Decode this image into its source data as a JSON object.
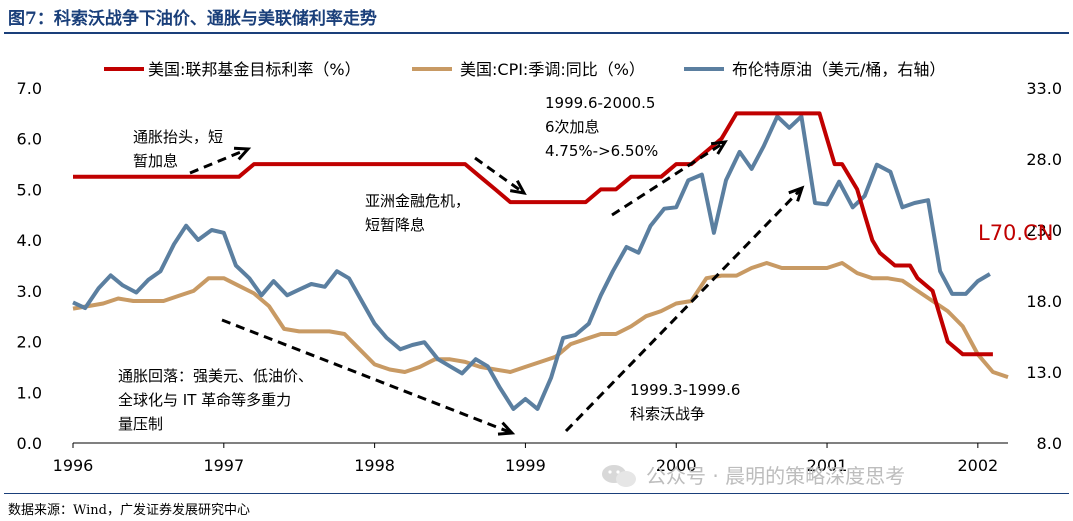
{
  "title": "图7：科索沃战争下油价、通胀与美联储利率走势",
  "source": "数据来源：Wind，广发证券发展研究中心",
  "watermark": "公众号 · 晨明的策略深度思考",
  "chart_data": {
    "type": "line",
    "legend_position": "top",
    "left_axis": {
      "min": 0,
      "max": 7,
      "ticks": [
        "0.0",
        "1.0",
        "2.0",
        "3.0",
        "4.0",
        "5.0",
        "6.0",
        "7.0"
      ]
    },
    "right_axis": {
      "min": 8,
      "max": 33,
      "ticks": [
        "8.0",
        "13.0",
        "18.0",
        "23.0",
        "28.0",
        "33.0"
      ]
    },
    "x_axis": {
      "min": 1996,
      "max": 2002.2,
      "ticks": [
        "1996",
        "1997",
        "1998",
        "1999",
        "2000",
        "2001",
        "2002"
      ]
    },
    "series": [
      {
        "name": "美国:联邦基金目标利率（%）",
        "color": "#c00000",
        "axis": "left",
        "points": [
          [
            1996.0,
            5.25
          ],
          [
            1996.1,
            5.25
          ],
          [
            1996.2,
            5.25
          ],
          [
            1996.3,
            5.25
          ],
          [
            1996.4,
            5.25
          ],
          [
            1996.5,
            5.25
          ],
          [
            1996.6,
            5.25
          ],
          [
            1996.7,
            5.25
          ],
          [
            1996.8,
            5.25
          ],
          [
            1996.9,
            5.25
          ],
          [
            1997.0,
            5.25
          ],
          [
            1997.1,
            5.25
          ],
          [
            1997.2,
            5.5
          ],
          [
            1997.4,
            5.5
          ],
          [
            1997.6,
            5.5
          ],
          [
            1997.8,
            5.5
          ],
          [
            1998.0,
            5.5
          ],
          [
            1998.2,
            5.5
          ],
          [
            1998.4,
            5.5
          ],
          [
            1998.6,
            5.5
          ],
          [
            1998.7,
            5.25
          ],
          [
            1998.8,
            5.0
          ],
          [
            1998.9,
            4.75
          ],
          [
            1999.1,
            4.75
          ],
          [
            1999.3,
            4.75
          ],
          [
            1999.4,
            4.75
          ],
          [
            1999.5,
            5.0
          ],
          [
            1999.6,
            5.0
          ],
          [
            1999.7,
            5.25
          ],
          [
            1999.9,
            5.25
          ],
          [
            2000.0,
            5.5
          ],
          [
            2000.1,
            5.5
          ],
          [
            2000.2,
            5.75
          ],
          [
            2000.3,
            6.0
          ],
          [
            2000.4,
            6.5
          ],
          [
            2000.6,
            6.5
          ],
          [
            2000.8,
            6.5
          ],
          [
            2000.95,
            6.5
          ],
          [
            2001.0,
            6.0
          ],
          [
            2001.05,
            5.5
          ],
          [
            2001.1,
            5.5
          ],
          [
            2001.2,
            5.0
          ],
          [
            2001.25,
            4.5
          ],
          [
            2001.3,
            4.0
          ],
          [
            2001.35,
            3.75
          ],
          [
            2001.45,
            3.5
          ],
          [
            2001.55,
            3.5
          ],
          [
            2001.6,
            3.25
          ],
          [
            2001.7,
            3.0
          ],
          [
            2001.75,
            2.5
          ],
          [
            2001.8,
            2.0
          ],
          [
            2001.9,
            1.75
          ],
          [
            2002.0,
            1.75
          ],
          [
            2002.1,
            1.75
          ]
        ]
      },
      {
        "name": "美国:CPI:季调:同比（%）",
        "color": "#c89a64",
        "axis": "left",
        "points": [
          [
            1996.0,
            2.65
          ],
          [
            1996.1,
            2.7
          ],
          [
            1996.2,
            2.75
          ],
          [
            1996.3,
            2.85
          ],
          [
            1996.4,
            2.8
          ],
          [
            1996.5,
            2.8
          ],
          [
            1996.6,
            2.8
          ],
          [
            1996.7,
            2.9
          ],
          [
            1996.8,
            3.0
          ],
          [
            1996.9,
            3.25
          ],
          [
            1997.0,
            3.25
          ],
          [
            1997.1,
            3.1
          ],
          [
            1997.2,
            2.95
          ],
          [
            1997.3,
            2.7
          ],
          [
            1997.4,
            2.25
          ],
          [
            1997.5,
            2.2
          ],
          [
            1997.6,
            2.2
          ],
          [
            1997.7,
            2.2
          ],
          [
            1997.8,
            2.15
          ],
          [
            1997.9,
            1.85
          ],
          [
            1998.0,
            1.55
          ],
          [
            1998.1,
            1.45
          ],
          [
            1998.2,
            1.4
          ],
          [
            1998.3,
            1.5
          ],
          [
            1998.4,
            1.65
          ],
          [
            1998.5,
            1.65
          ],
          [
            1998.6,
            1.6
          ],
          [
            1998.7,
            1.5
          ],
          [
            1998.8,
            1.45
          ],
          [
            1998.9,
            1.4
          ],
          [
            1999.0,
            1.5
          ],
          [
            1999.1,
            1.6
          ],
          [
            1999.2,
            1.7
          ],
          [
            1999.3,
            1.95
          ],
          [
            1999.4,
            2.05
          ],
          [
            1999.5,
            2.15
          ],
          [
            1999.6,
            2.15
          ],
          [
            1999.7,
            2.3
          ],
          [
            1999.8,
            2.5
          ],
          [
            1999.9,
            2.6
          ],
          [
            2000.0,
            2.75
          ],
          [
            2000.1,
            2.8
          ],
          [
            2000.2,
            3.25
          ],
          [
            2000.3,
            3.3
          ],
          [
            2000.4,
            3.3
          ],
          [
            2000.5,
            3.45
          ],
          [
            2000.6,
            3.55
          ],
          [
            2000.7,
            3.45
          ],
          [
            2000.8,
            3.45
          ],
          [
            2000.9,
            3.45
          ],
          [
            2001.0,
            3.45
          ],
          [
            2001.1,
            3.55
          ],
          [
            2001.2,
            3.35
          ],
          [
            2001.3,
            3.25
          ],
          [
            2001.4,
            3.25
          ],
          [
            2001.5,
            3.2
          ],
          [
            2001.6,
            3.0
          ],
          [
            2001.7,
            2.8
          ],
          [
            2001.8,
            2.6
          ],
          [
            2001.9,
            2.3
          ],
          [
            2002.0,
            1.75
          ],
          [
            2002.1,
            1.4
          ],
          [
            2002.2,
            1.3
          ]
        ]
      },
      {
        "name": "布伦特原油（美元/桶，右轴）",
        "color": "#5b7fa0",
        "axis": "right",
        "points": [
          [
            1996.0,
            17.9
          ],
          [
            1996.08,
            17.5
          ],
          [
            1996.17,
            18.9
          ],
          [
            1996.25,
            19.8
          ],
          [
            1996.33,
            19.1
          ],
          [
            1996.42,
            18.6
          ],
          [
            1996.5,
            19.5
          ],
          [
            1996.58,
            20.1
          ],
          [
            1996.67,
            22.0
          ],
          [
            1996.75,
            23.3
          ],
          [
            1996.83,
            22.3
          ],
          [
            1996.92,
            23.0
          ],
          [
            1997.0,
            22.8
          ],
          [
            1997.08,
            20.5
          ],
          [
            1997.17,
            19.6
          ],
          [
            1997.25,
            18.4
          ],
          [
            1997.33,
            19.4
          ],
          [
            1997.42,
            18.4
          ],
          [
            1997.5,
            18.8
          ],
          [
            1997.58,
            19.2
          ],
          [
            1997.67,
            19.0
          ],
          [
            1997.75,
            20.1
          ],
          [
            1997.83,
            19.6
          ],
          [
            1997.92,
            17.9
          ],
          [
            1998.0,
            16.4
          ],
          [
            1998.08,
            15.4
          ],
          [
            1998.17,
            14.6
          ],
          [
            1998.25,
            14.9
          ],
          [
            1998.33,
            15.1
          ],
          [
            1998.42,
            13.9
          ],
          [
            1998.5,
            13.4
          ],
          [
            1998.58,
            12.9
          ],
          [
            1998.67,
            13.9
          ],
          [
            1998.75,
            13.4
          ],
          [
            1998.83,
            11.9
          ],
          [
            1998.92,
            10.4
          ],
          [
            1999.0,
            11.1
          ],
          [
            1999.08,
            10.4
          ],
          [
            1999.17,
            12.6
          ],
          [
            1999.25,
            15.4
          ],
          [
            1999.33,
            15.6
          ],
          [
            1999.42,
            16.4
          ],
          [
            1999.5,
            18.4
          ],
          [
            1999.58,
            20.1
          ],
          [
            1999.67,
            21.8
          ],
          [
            1999.75,
            21.4
          ],
          [
            1999.83,
            23.3
          ],
          [
            1999.92,
            24.5
          ],
          [
            2000.0,
            24.6
          ],
          [
            2000.08,
            26.5
          ],
          [
            2000.17,
            26.9
          ],
          [
            2000.25,
            22.8
          ],
          [
            2000.33,
            26.5
          ],
          [
            2000.42,
            28.5
          ],
          [
            2000.5,
            27.3
          ],
          [
            2000.58,
            28.9
          ],
          [
            2000.67,
            31.0
          ],
          [
            2000.75,
            30.2
          ],
          [
            2000.83,
            31.0
          ],
          [
            2000.92,
            24.9
          ],
          [
            2001.0,
            24.8
          ],
          [
            2001.08,
            26.4
          ],
          [
            2001.17,
            24.6
          ],
          [
            2001.25,
            25.4
          ],
          [
            2001.33,
            27.6
          ],
          [
            2001.42,
            27.1
          ],
          [
            2001.5,
            24.6
          ],
          [
            2001.58,
            24.9
          ],
          [
            2001.67,
            25.1
          ],
          [
            2001.75,
            20.1
          ],
          [
            2001.83,
            18.5
          ],
          [
            2001.92,
            18.5
          ],
          [
            2002.0,
            19.4
          ],
          [
            2002.08,
            19.9
          ]
        ]
      }
    ],
    "annotations": [
      {
        "lines": [
          "通胀抬头，短",
          "暂加息"
        ],
        "color": "#000000"
      },
      {
        "lines": [
          "亚洲金融危机，",
          "短暂降息"
        ],
        "color": "#000000"
      },
      {
        "lines": [
          "1999.6-2000.5",
          "6次加息",
          "4.75%->6.50%"
        ],
        "color": "#000000"
      },
      {
        "lines": [
          "通胀回落：强美元、低油价、",
          "全球化与 IT 革命等多重力",
          "量压制"
        ],
        "color": "#000000"
      },
      {
        "lines": [
          "1999.3-1999.6",
          "科索沃战争"
        ],
        "color": "#000000"
      },
      {
        "lines": [
          "L70.CN"
        ],
        "color": "#c00000"
      }
    ]
  }
}
